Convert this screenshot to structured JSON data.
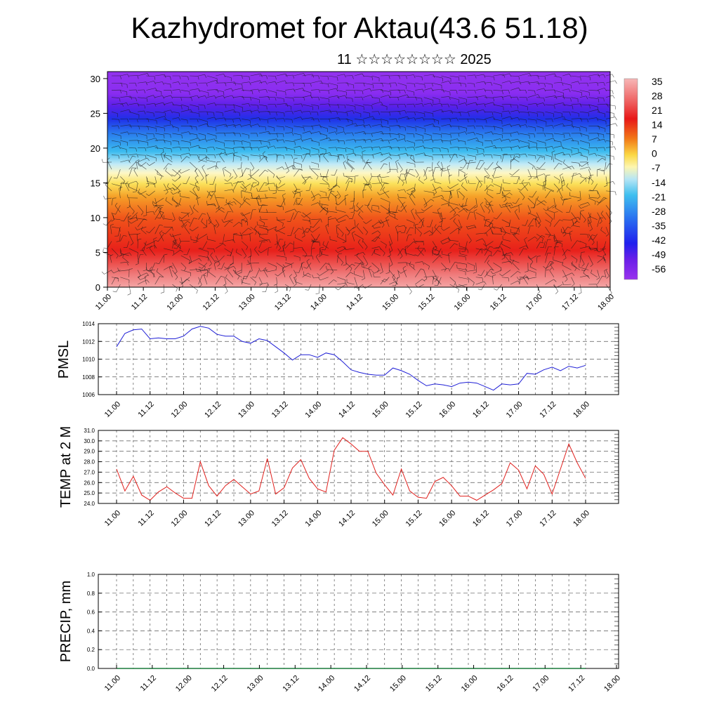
{
  "header": {
    "title": "Kazhydromet for Aktau(43.6 51.18)",
    "subtitle": "11 ☆☆☆☆☆☆☆☆ 2025"
  },
  "x_tick_labels": [
    "11.00",
    "11.12",
    "12.00",
    "12.12",
    "13.00",
    "13.12",
    "14.00",
    "14.12",
    "15.00",
    "15.12",
    "16.00",
    "16.12",
    "17.00",
    "17.12",
    "18.00"
  ],
  "chart_data": [
    {
      "id": "cross-section",
      "type": "heatmap",
      "description_axis": "height",
      "x_ticks": [
        "11.00",
        "11.12",
        "12.00",
        "12.12",
        "13.00",
        "13.12",
        "14.00",
        "14.12",
        "15.00",
        "15.12",
        "16.00",
        "16.12",
        "17.00",
        "17.12",
        "18.00"
      ],
      "y_ticks": [
        0,
        5,
        10,
        15,
        20,
        25,
        30
      ],
      "ylim": [
        0,
        31
      ],
      "colorbar": {
        "labels": [
          "35",
          "28",
          "21",
          "14",
          "7",
          "0",
          "-7",
          "-14",
          "-21",
          "-28",
          "-35",
          "-42",
          "-49",
          "-56"
        ],
        "range": [
          -60,
          38
        ],
        "colors": [
          "#f7b7b7",
          "#ef6b6b",
          "#e81818",
          "#f04a10",
          "#f79a28",
          "#fbd845",
          "#fdf6b0",
          "#b7e6f5",
          "#3fbfef",
          "#2d8ff0",
          "#1f40ee",
          "#4a10e6",
          "#7a2ff0",
          "#9933ee"
        ]
      },
      "temperature_profile_by_height": [
        {
          "z": 0,
          "t": 30
        },
        {
          "z": 3,
          "t": 27
        },
        {
          "z": 8,
          "t": 22
        },
        {
          "z": 12,
          "t": 12
        },
        {
          "z": 15,
          "t": 3
        },
        {
          "z": 17,
          "t": -10
        },
        {
          "z": 20,
          "t": -30
        },
        {
          "z": 23,
          "t": -44
        },
        {
          "z": 25,
          "t": -52
        },
        {
          "z": 27,
          "t": -57
        },
        {
          "z": 31,
          "t": -58
        }
      ],
      "overlay": "wind barbs"
    },
    {
      "id": "pmsl",
      "type": "line",
      "ylabel": "PMSL",
      "ylim": [
        1006,
        1014
      ],
      "y_ticks": [
        "1014",
        "1012",
        "1010",
        "1008",
        "1006"
      ],
      "x": [
        0,
        1,
        2,
        3,
        4,
        5,
        6,
        7,
        8,
        9,
        10,
        11,
        12,
        13,
        14,
        15,
        16,
        17,
        18,
        19,
        20,
        21,
        22,
        23,
        24,
        25,
        26,
        27,
        28,
        29,
        30,
        31,
        32,
        33,
        34,
        35,
        36,
        37,
        38,
        39,
        40,
        41,
        42,
        43,
        44,
        45,
        46,
        47,
        48,
        49,
        50,
        51,
        52,
        53,
        54,
        55,
        56
      ],
      "values": [
        1011.4,
        1012.9,
        1013.3,
        1013.4,
        1012.3,
        1012.4,
        1012.3,
        1012.3,
        1012.6,
        1013.4,
        1013.7,
        1013.5,
        1012.8,
        1012.6,
        1012.6,
        1012.0,
        1011.8,
        1012.3,
        1012.1,
        1011.4,
        1010.7,
        1009.9,
        1010.5,
        1010.5,
        1010.2,
        1010.7,
        1010.5,
        1009.7,
        1008.8,
        1008.5,
        1008.3,
        1008.2,
        1008.2,
        1009.0,
        1008.7,
        1008.3,
        1007.6,
        1007.0,
        1007.2,
        1007.1,
        1006.9,
        1007.3,
        1007.4,
        1007.3,
        1006.9,
        1006.5,
        1007.2,
        1007.1,
        1007.2,
        1008.4,
        1008.3,
        1008.8,
        1009.1,
        1008.7,
        1009.2,
        1009.0,
        1009.3
      ],
      "color": "#1f1fd6"
    },
    {
      "id": "temp2m",
      "type": "line",
      "ylabel": "TEMP at 2 M",
      "ylim": [
        24.0,
        31.0
      ],
      "y_ticks": [
        "31.0",
        "30.0",
        "29.0",
        "28.0",
        "27.0",
        "26.0",
        "25.0",
        "24.0"
      ],
      "x": [
        0,
        1,
        2,
        3,
        4,
        5,
        6,
        7,
        8,
        9,
        10,
        11,
        12,
        13,
        14,
        15,
        16,
        17,
        18,
        19,
        20,
        21,
        22,
        23,
        24,
        25,
        26,
        27,
        28,
        29,
        30,
        31,
        32,
        33,
        34,
        35,
        36,
        37,
        38,
        39,
        40,
        41,
        42,
        43,
        44,
        45,
        46,
        47,
        48,
        49,
        50,
        51,
        52,
        53,
        54,
        55,
        56
      ],
      "values": [
        27.3,
        25.2,
        26.6,
        24.8,
        24.3,
        25.1,
        25.6,
        25.0,
        24.5,
        24.5,
        28.0,
        25.7,
        24.7,
        25.7,
        26.3,
        25.6,
        24.9,
        25.2,
        28.3,
        24.9,
        25.5,
        27.4,
        28.2,
        26.4,
        25.4,
        25.1,
        29.1,
        30.3,
        29.7,
        29.0,
        29.0,
        26.9,
        25.8,
        24.8,
        27.3,
        25.2,
        24.6,
        24.5,
        26.1,
        26.5,
        25.7,
        24.7,
        24.7,
        24.3,
        24.8,
        25.3,
        25.9,
        27.9,
        27.2,
        25.4,
        27.6,
        26.8,
        24.9,
        27.3,
        29.7,
        27.9,
        26.4
      ],
      "color": "#e0201d"
    },
    {
      "id": "precip",
      "type": "line",
      "ylabel": "PRECIP, mm",
      "ylim": [
        0.0,
        1.0
      ],
      "y_ticks": [
        "1.0",
        "0.8",
        "0.6",
        "0.4",
        "0.2",
        "0.0"
      ],
      "values": [
        0,
        0,
        0,
        0,
        0,
        0,
        0,
        0,
        0,
        0,
        0,
        0,
        0,
        0,
        0,
        0,
        0,
        0,
        0,
        0,
        0,
        0,
        0,
        0,
        0,
        0,
        0,
        0,
        0,
        0,
        0,
        0,
        0,
        0,
        0,
        0,
        0,
        0,
        0,
        0,
        0,
        0,
        0,
        0,
        0,
        0,
        0,
        0,
        0,
        0,
        0,
        0,
        0,
        0,
        0,
        0,
        0
      ],
      "color": "#1a7a3a"
    }
  ]
}
